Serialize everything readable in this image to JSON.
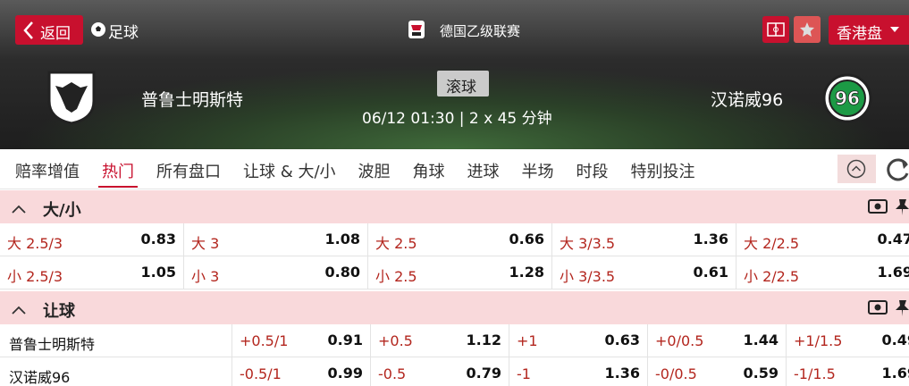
{
  "header": {
    "back": "返回",
    "sport": "足球",
    "league": "德国乙级联赛",
    "odds_type": "香港盘",
    "home_team": "普鲁士明斯特",
    "away_team": "汉诺威96",
    "status": "滚球",
    "time": "06/12 01:30 | 2 x 45 分钟"
  },
  "tabs": {
    "items": [
      "赔率增值",
      "热门",
      "所有盘口",
      "让球 & 大/小",
      "波胆",
      "角球",
      "进球",
      "半场",
      "时段",
      "特别投注"
    ],
    "active": "热门"
  },
  "sections": [
    {
      "title": "大/小",
      "rows": [
        {
          "cells": [
            [
              "大 2.5/3",
              "0.83"
            ],
            [
              "大 3",
              "1.08"
            ],
            [
              "大 2.5",
              "0.66"
            ],
            [
              "大 3/3.5",
              "1.36"
            ],
            [
              "大 2/2.5",
              "0.47"
            ]
          ]
        },
        {
          "cells": [
            [
              "小 2.5/3",
              "1.05"
            ],
            [
              "小 3",
              "0.80"
            ],
            [
              "小 2.5",
              "1.28"
            ],
            [
              "小 3/3.5",
              "0.61"
            ],
            [
              "小 2/2.5",
              "1.69"
            ]
          ]
        }
      ]
    },
    {
      "title": "让球",
      "rows": [
        {
          "team": "普鲁士明斯特",
          "cells": [
            [
              "+0.5/1",
              "0.91"
            ],
            [
              "+0.5",
              "1.12"
            ],
            [
              "+1",
              "0.63"
            ],
            [
              "+0/0.5",
              "1.44"
            ],
            [
              "+1/1.5",
              "0.49"
            ]
          ]
        },
        {
          "team": "汉诺威96",
          "cells": [
            [
              "-0.5/1",
              "0.99"
            ],
            [
              "-0.5",
              "0.79"
            ],
            [
              "-1",
              "1.36"
            ],
            [
              "-0/0.5",
              "0.59"
            ],
            [
              "-1/1.5",
              "1.69"
            ]
          ]
        }
      ]
    }
  ]
}
